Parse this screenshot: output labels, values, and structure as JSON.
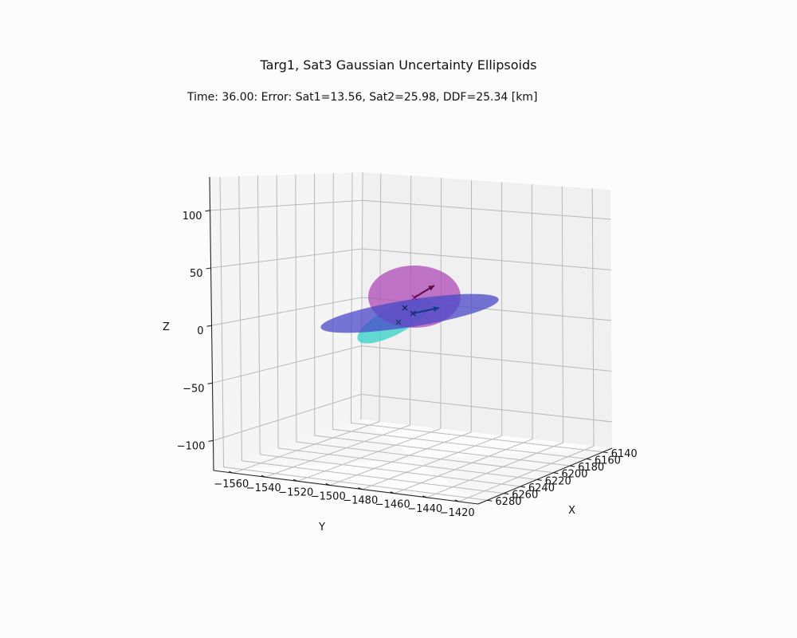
{
  "chart_data": {
    "type": "3d-ellipsoids",
    "title": "Targ1, Sat3 Gaussian Uncertainty Ellipsoids",
    "subtitle": "Time: 36.00: Error: Sat1=13.56, Sat2=25.98,  DDF=25.34 [km]",
    "xlabel": "X",
    "ylabel": "Y",
    "zlabel": "Z",
    "x_ticks": [
      "6140",
      "6160",
      "6180",
      "6200",
      "6220",
      "6240",
      "6260",
      "6280"
    ],
    "y_ticks": [
      "−1560",
      "−1540",
      "−1520",
      "−1500",
      "−1480",
      "−1460",
      "−1440",
      "−1420"
    ],
    "z_ticks": [
      "100",
      "50",
      "0",
      "−50",
      "−100"
    ],
    "xlim": [
      6130,
      6290
    ],
    "ylim": [
      -1570,
      -1410
    ],
    "zlim": [
      -125,
      125
    ],
    "grid": true,
    "ellipsoids": [
      {
        "color": "#b04fb8",
        "opacity": 0.78,
        "center": [
          6210,
          -1485,
          22
        ]
      },
      {
        "color": "#4a48c8",
        "opacity": 0.75,
        "center": [
          6212,
          -1488,
          10
        ]
      },
      {
        "color": "#3fd3c8",
        "opacity": 0.8,
        "center": [
          6222,
          -1495,
          -5
        ]
      }
    ],
    "vectors": [
      {
        "color": "#5c0d45"
      },
      {
        "color": "#123a88"
      }
    ]
  }
}
